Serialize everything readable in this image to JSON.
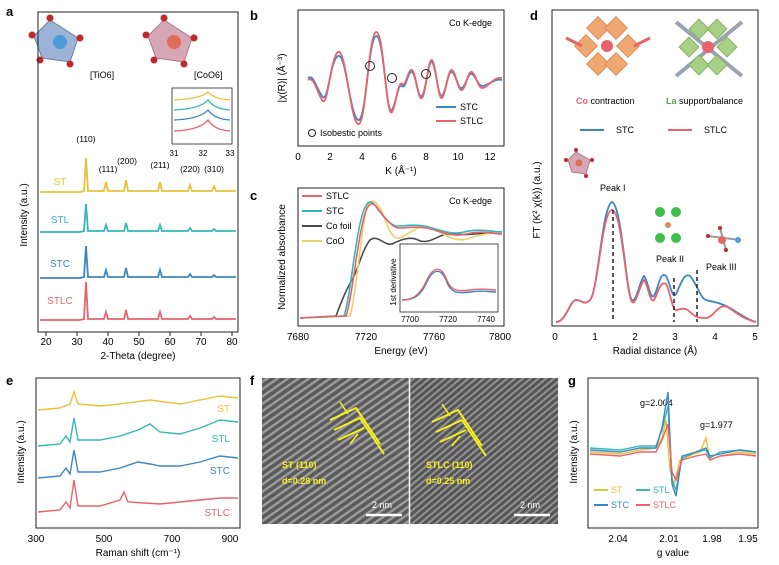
{
  "figure": {
    "panel_labels": [
      "a",
      "b",
      "c",
      "d",
      "e",
      "f",
      "g"
    ]
  },
  "panel_a": {
    "ylabel": "Intensity (a.u.)",
    "xlabel": "2-Theta (degree)",
    "xticks": [
      "20",
      "30",
      "40",
      "50",
      "60",
      "70",
      "80"
    ],
    "structures": [
      "[TiO6]",
      "[CoO6]"
    ],
    "peaks": [
      "(110)",
      "(111)",
      "(200)",
      "(211)",
      "(220)",
      "(310)"
    ],
    "samples": [
      "ST",
      "STL",
      "STC",
      "STLC"
    ],
    "inset_xticks": [
      "31",
      "32",
      "33"
    ]
  },
  "panel_b": {
    "ylabel": "|χ(R)| (Å⁻³)",
    "xlabel": "K (Å⁻¹)",
    "title": "Co K-edge",
    "xticks": [
      "0",
      "2",
      "4",
      "6",
      "8",
      "10",
      "12"
    ],
    "legend": [
      "STC",
      "STLC"
    ],
    "isobestic": "Isobestic points"
  },
  "panel_c": {
    "ylabel": "Normalized absorbance",
    "xlabel": "Energy (eV)",
    "title": "Co K-edge",
    "xticks": [
      "7680",
      "7720",
      "7760",
      "7800"
    ],
    "legend": [
      "STLC",
      "STC",
      "Co foil",
      "CoO"
    ],
    "inset_ylabel": "1st derivative",
    "inset_xticks": [
      "7700",
      "7720",
      "7740"
    ]
  },
  "panel_d": {
    "ylabel": "FT (K² χ(k)) (a.u.)",
    "xlabel": "Radial distance (Å)",
    "xticks": [
      "0",
      "1",
      "2",
      "3",
      "4",
      "5"
    ],
    "co_word": "Co",
    "co_rest": " contraction",
    "la_word": "La",
    "la_rest": " support/balance",
    "legend": [
      "STC",
      "STLC"
    ],
    "peaks": [
      "Peak I",
      "Peak II",
      "Peak III"
    ]
  },
  "panel_e": {
    "ylabel": "Intensity (a.u.)",
    "xlabel": "Raman shift (cm⁻¹)",
    "xticks": [
      "300",
      "500",
      "700",
      "900"
    ],
    "samples": [
      "ST",
      "STL",
      "STC",
      "STLC"
    ]
  },
  "panel_f": {
    "left_label": "ST (110)",
    "left_d": "d=0.28 nm",
    "right_label": "STLC (110)",
    "right_d": "d=0.25 nm",
    "scale": "2 nm"
  },
  "panel_g": {
    "ylabel": "Intensity (a.u.)",
    "xlabel": "g value",
    "xticks": [
      "2.04",
      "2.01",
      "1.98",
      "1.95"
    ],
    "g1": "g=2.004",
    "g2": "g=1.977",
    "legend": [
      "ST",
      "STL",
      "STC",
      "STLC"
    ]
  },
  "colors": {
    "ST": "#e8c23a",
    "STL": "#34b8b8",
    "STC": "#3d86c4",
    "STLC": "#e8636b",
    "CoFoil": "#4a4a4a",
    "CoO": "#e8d36a"
  }
}
